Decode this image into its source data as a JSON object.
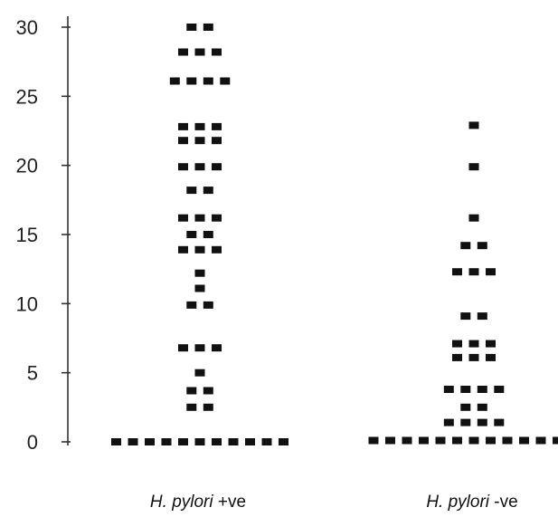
{
  "chart_data": {
    "type": "scatter",
    "subtype": "dot-plot",
    "title": "",
    "ylim": [
      0,
      30
    ],
    "yticks": [
      "0",
      "5",
      "10",
      "15",
      "20",
      "25",
      "30"
    ],
    "grid": false,
    "marker_color": "#111111",
    "categories": [
      {
        "italic": "H. pylori",
        "suffix": "+ve"
      },
      {
        "italic": "H. pylori",
        "suffix": "-ve"
      }
    ],
    "groups": [
      {
        "points": [
          {
            "y": 30,
            "n": 2
          },
          {
            "y": 28.2,
            "n": 3
          },
          {
            "y": 26.1,
            "n": 4
          },
          {
            "y": 22.8,
            "n": 3
          },
          {
            "y": 21.8,
            "n": 3
          },
          {
            "y": 19.9,
            "n": 3
          },
          {
            "y": 18.2,
            "n": 2
          },
          {
            "y": 16.2,
            "n": 3
          },
          {
            "y": 15,
            "n": 2
          },
          {
            "y": 13.9,
            "n": 3
          },
          {
            "y": 12.2,
            "n": 1
          },
          {
            "y": 11.1,
            "n": 1
          },
          {
            "y": 9.9,
            "n": 2
          },
          {
            "y": 6.8,
            "n": 3
          },
          {
            "y": 5,
            "n": 1
          },
          {
            "y": 3.7,
            "n": 2
          },
          {
            "y": 2.5,
            "n": 2
          },
          {
            "y": 0,
            "n": 11
          }
        ]
      },
      {
        "points": [
          {
            "y": 22.9,
            "n": 1
          },
          {
            "y": 19.9,
            "n": 1
          },
          {
            "y": 16.2,
            "n": 1
          },
          {
            "y": 14.2,
            "n": 2
          },
          {
            "y": 12.3,
            "n": 3
          },
          {
            "y": 9.1,
            "n": 2
          },
          {
            "y": 7.1,
            "n": 3
          },
          {
            "y": 6.1,
            "n": 3
          },
          {
            "y": 3.8,
            "n": 4
          },
          {
            "y": 2.5,
            "n": 2
          },
          {
            "y": 1.4,
            "n": 4
          },
          {
            "y": 0.1,
            "n": 13
          }
        ]
      }
    ]
  }
}
